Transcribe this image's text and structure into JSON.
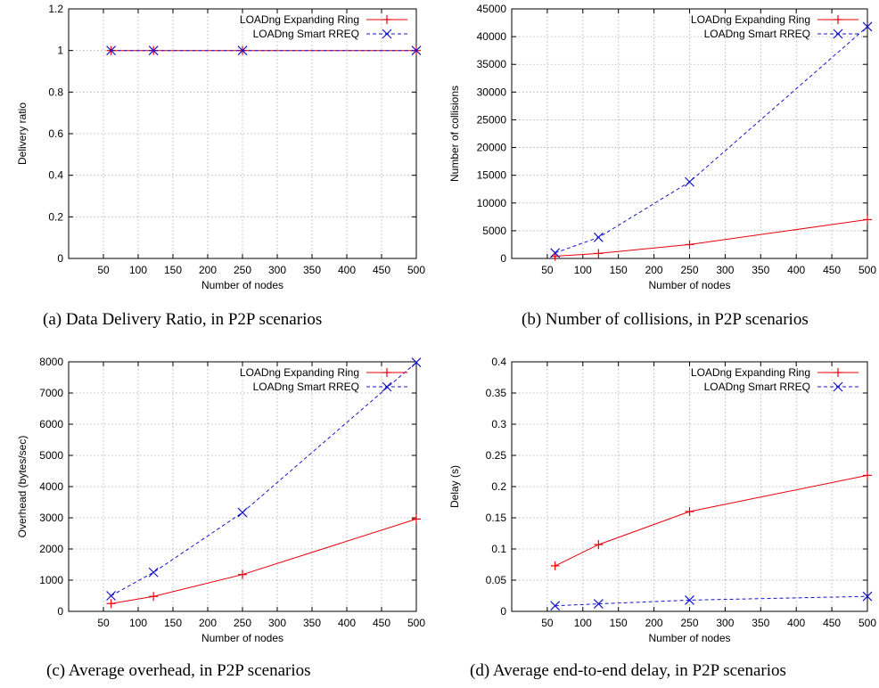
{
  "figure": {
    "captions": [
      "(a)  Data Delivery Ratio, in P2P scenarios",
      "(b)  Number of collisions, in P2P scenarios",
      "(c)  Average overhead, in P2P scenarios",
      "(d)  Average end-to-end delay, in P2P scenarios"
    ]
  },
  "colors": {
    "expanding_ring": "#e8000b",
    "smart_rreq": "#1414c8",
    "grid": "#aaaaaa"
  },
  "chart_data": [
    {
      "type": "line",
      "title": "",
      "xlabel": "Number of nodes",
      "ylabel": "Delivery ratio",
      "xlim": [
        0,
        500
      ],
      "ylim": [
        0,
        1.2
      ],
      "xticks": [
        50,
        100,
        150,
        200,
        250,
        300,
        350,
        400,
        450,
        500
      ],
      "yticks": [
        0,
        0.2,
        0.4,
        0.6,
        0.8,
        1,
        1.2
      ],
      "ytick_labels": [
        "0",
        "0.2",
        "0.4",
        "0.6",
        "0.8",
        "1",
        "1.2"
      ],
      "grid": true,
      "legend_position": "top-right",
      "series": [
        {
          "name": "LOADng Expanding Ring",
          "style": "solid",
          "marker": "plus",
          "x": [
            61,
            122,
            250,
            500
          ],
          "y": [
            1,
            1,
            1,
            1
          ]
        },
        {
          "name": "LOADng Smart RREQ",
          "style": "dashed",
          "marker": "cross",
          "x": [
            61,
            122,
            250,
            500
          ],
          "y": [
            1,
            1,
            1,
            1
          ]
        }
      ]
    },
    {
      "type": "line",
      "title": "",
      "xlabel": "Number of nodes",
      "ylabel": "Number of collisions",
      "xlim": [
        0,
        500
      ],
      "ylim": [
        0,
        45000
      ],
      "xticks": [
        50,
        100,
        150,
        200,
        250,
        300,
        350,
        400,
        450,
        500
      ],
      "yticks": [
        0,
        5000,
        10000,
        15000,
        20000,
        25000,
        30000,
        35000,
        40000,
        45000
      ],
      "ytick_labels": [
        "0",
        "5000",
        "10000",
        "15000",
        "20000",
        "25000",
        "30000",
        "35000",
        "40000",
        "45000"
      ],
      "grid": true,
      "legend_position": "top-right",
      "series": [
        {
          "name": "LOADng Expanding Ring",
          "style": "solid",
          "marker": "plus",
          "x": [
            61,
            122,
            250,
            500
          ],
          "y": [
            400,
            900,
            2500,
            7000
          ]
        },
        {
          "name": "LOADng Smart RREQ",
          "style": "dashed",
          "marker": "cross",
          "x": [
            61,
            122,
            250,
            500
          ],
          "y": [
            1000,
            3800,
            13800,
            41800
          ]
        }
      ]
    },
    {
      "type": "line",
      "title": "",
      "xlabel": "Number of nodes",
      "ylabel": "Overhead (bytes/sec)",
      "xlim": [
        0,
        500
      ],
      "ylim": [
        0,
        8000
      ],
      "xticks": [
        50,
        100,
        150,
        200,
        250,
        300,
        350,
        400,
        450,
        500
      ],
      "yticks": [
        0,
        1000,
        2000,
        3000,
        4000,
        5000,
        6000,
        7000,
        8000
      ],
      "ytick_labels": [
        "0",
        "1000",
        "2000",
        "3000",
        "4000",
        "5000",
        "6000",
        "7000",
        "8000"
      ],
      "grid": true,
      "legend_position": "top-right",
      "series": [
        {
          "name": "LOADng Expanding Ring",
          "style": "solid",
          "marker": "plus",
          "x": [
            61,
            122,
            250,
            500
          ],
          "y": [
            250,
            480,
            1180,
            2960
          ]
        },
        {
          "name": "LOADng Smart RREQ",
          "style": "dashed",
          "marker": "cross",
          "x": [
            61,
            122,
            250,
            500
          ],
          "y": [
            500,
            1250,
            3170,
            7980
          ]
        }
      ]
    },
    {
      "type": "line",
      "title": "",
      "xlabel": "Number of nodes",
      "ylabel": "Delay (s)",
      "xlim": [
        0,
        500
      ],
      "ylim": [
        0,
        0.4
      ],
      "xticks": [
        50,
        100,
        150,
        200,
        250,
        300,
        350,
        400,
        450,
        500
      ],
      "yticks": [
        0,
        0.05,
        0.1,
        0.15,
        0.2,
        0.25,
        0.3,
        0.35,
        0.4
      ],
      "ytick_labels": [
        "0",
        "0.05",
        "0.1",
        "0.15",
        "0.2",
        "0.25",
        "0.3",
        "0.35",
        "0.4"
      ],
      "grid": true,
      "legend_position": "top-right",
      "series": [
        {
          "name": "LOADng Expanding Ring",
          "style": "solid",
          "marker": "plus",
          "x": [
            61,
            122,
            250,
            500
          ],
          "y": [
            0.073,
            0.107,
            0.16,
            0.218
          ]
        },
        {
          "name": "LOADng Smart RREQ",
          "style": "dashed",
          "marker": "cross",
          "x": [
            61,
            122,
            250,
            500
          ],
          "y": [
            0.009,
            0.012,
            0.018,
            0.024
          ]
        }
      ]
    }
  ]
}
